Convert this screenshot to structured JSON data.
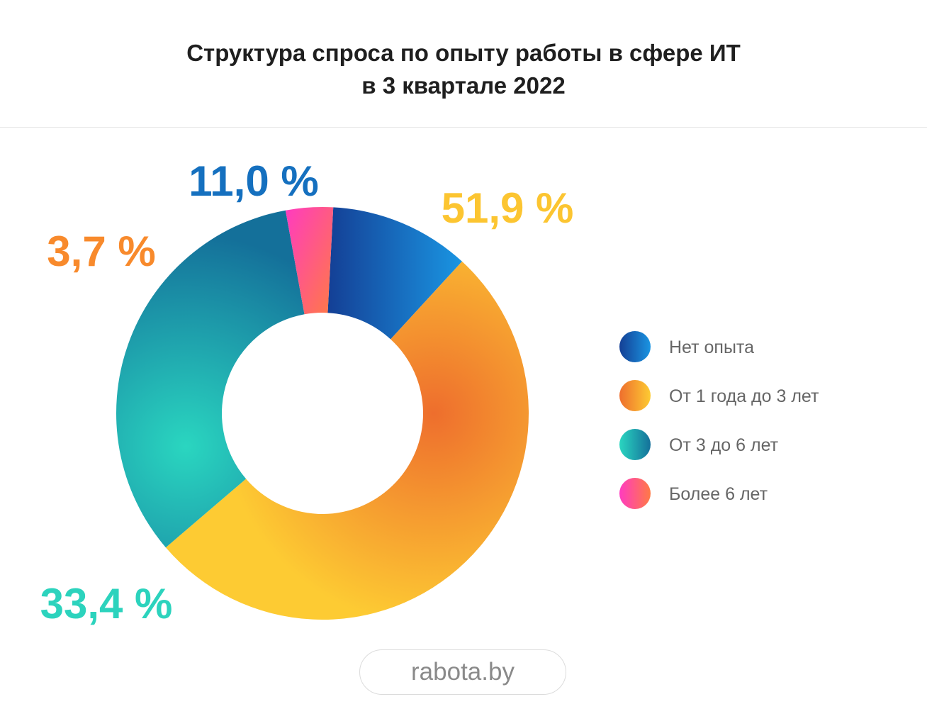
{
  "title": {
    "line1": "Структура спроса по опыту работы в сфере ИТ",
    "line2": "в 3 квартале 2022"
  },
  "chart_data": {
    "type": "pie",
    "subtype": "donut",
    "categories": [
      "Нет опыта",
      "От 1 года до 3 лет",
      "От 3 до 6 лет",
      "Более 6 лет"
    ],
    "values": [
      11.0,
      51.9,
      33.4,
      3.7
    ],
    "labels": [
      "11,0 %",
      "51,9 %",
      "33,4 %",
      "3,7 %"
    ],
    "colors": [
      "#1a73c9",
      "#f5a42a",
      "#1a9aa8",
      "#ff4fa3"
    ],
    "label_colors": [
      "#1570bf",
      "#fcc531",
      "#2cd3bd",
      "#f88a2c"
    ],
    "legend_position": "right",
    "start_angle_deg": 0,
    "direction": "clockwise"
  },
  "source": "rabota.by"
}
